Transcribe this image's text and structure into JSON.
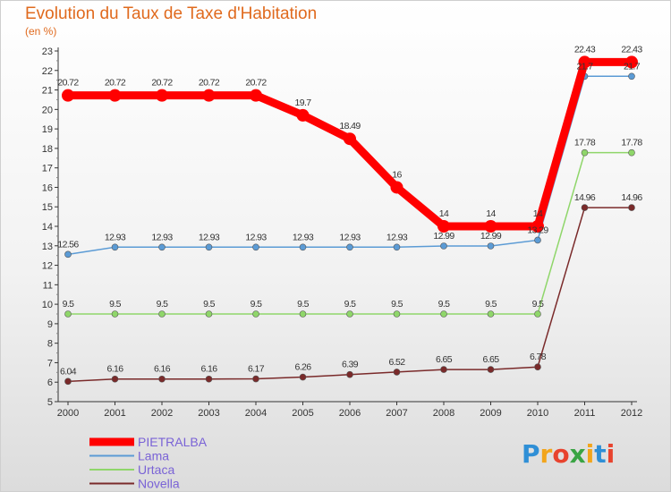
{
  "title": "Evolution du Taux de Taxe d'Habitation",
  "subtitle": "(en %)",
  "logo": {
    "letters": [
      "P",
      "r",
      "o",
      "x",
      "i",
      "t",
      "i"
    ],
    "colors": [
      "#2f8fd6",
      "#f2a51c",
      "#e8432e",
      "#3aa444",
      "#f2a51c",
      "#2f8fd6",
      "#e8432e"
    ]
  },
  "chart_data": {
    "type": "line",
    "title": "Evolution du Taux de Taxe d'Habitation",
    "subtitle": "(en %)",
    "x": [
      "2000",
      "2001",
      "2002",
      "2003",
      "2004",
      "2005",
      "2006",
      "2007",
      "2008",
      "2009",
      "2010",
      "2011",
      "2012"
    ],
    "ylim": [
      5,
      23
    ],
    "yticks": [
      5,
      6,
      7,
      8,
      9,
      10,
      11,
      12,
      13,
      14,
      15,
      16,
      17,
      18,
      19,
      20,
      21,
      22,
      23
    ],
    "grid": false,
    "legend": "bottom-left",
    "series": [
      {
        "name": "PIETRALBA",
        "color": "#ff0000",
        "width": 9,
        "dot": 7,
        "values": [
          20.72,
          20.72,
          20.72,
          20.72,
          20.72,
          19.7,
          18.49,
          16,
          14,
          14,
          14,
          22.43,
          22.43
        ],
        "labels": [
          "20.72",
          "20.72",
          "20.72",
          "20.72",
          "20.72",
          "19.7",
          "18.49",
          "16",
          "14",
          "14",
          "14",
          "22.43",
          "22.43"
        ]
      },
      {
        "name": "Lama",
        "color": "#5b9bd5",
        "width": 1.5,
        "dot": 3.5,
        "values": [
          12.56,
          12.93,
          12.93,
          12.93,
          12.93,
          12.93,
          12.93,
          12.93,
          12.99,
          12.99,
          13.29,
          21.7,
          21.7
        ],
        "labels": [
          "12.56",
          "12.93",
          "12.93",
          "12.93",
          "12.93",
          "12.93",
          "12.93",
          "12.93",
          "12.99",
          "12.99",
          "13.29",
          "21.7",
          "21.7"
        ]
      },
      {
        "name": "Urtaca",
        "color": "#8fd66a",
        "width": 1.5,
        "dot": 3.5,
        "values": [
          9.5,
          9.5,
          9.5,
          9.5,
          9.5,
          9.5,
          9.5,
          9.5,
          9.5,
          9.5,
          9.5,
          17.78,
          17.78
        ],
        "labels": [
          "9.5",
          "9.5",
          "9.5",
          "9.5",
          "9.5",
          "9.5",
          "9.5",
          "9.5",
          "9.5",
          "9.5",
          "9.5",
          "17.78",
          "17.78"
        ]
      },
      {
        "name": "Novella",
        "color": "#7a2a2a",
        "width": 1.5,
        "dot": 3.5,
        "values": [
          6.04,
          6.16,
          6.16,
          6.16,
          6.17,
          6.26,
          6.39,
          6.52,
          6.65,
          6.65,
          6.78,
          14.96,
          14.96
        ],
        "labels": [
          "6.04",
          "6.16",
          "6.16",
          "6.16",
          "6.17",
          "6.26",
          "6.39",
          "6.52",
          "6.65",
          "6.65",
          "6.78",
          "14.96",
          "14.96"
        ]
      }
    ]
  }
}
